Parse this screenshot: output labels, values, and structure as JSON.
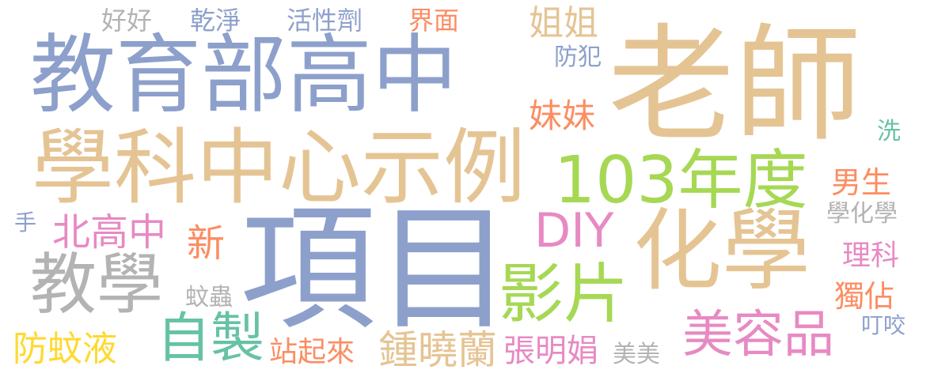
{
  "words": {
    "jiaoyubu": {
      "text": "教育部高中",
      "color": "#8da0cb"
    },
    "laoshi": {
      "text": "老師",
      "color": "#e5c494"
    },
    "xueke": {
      "text": "學科中心示例",
      "color": "#e5c494"
    },
    "xiangmu": {
      "text": "項目",
      "color": "#8da0cb"
    },
    "niandu": {
      "text": "103年度",
      "color": "#a6d854"
    },
    "huaxue": {
      "text": "化學",
      "color": "#e5c494"
    },
    "diy": {
      "text": "DIY",
      "color": "#e78ac3"
    },
    "yingpian": {
      "text": "影片",
      "color": "#a6d854"
    },
    "jiaoxue": {
      "text": "教學",
      "color": "#b3b3b3"
    },
    "zizhi": {
      "text": "自製",
      "color": "#66c2a5"
    },
    "meirong": {
      "text": "美容品",
      "color": "#e78ac3"
    },
    "fangwenye": {
      "text": "防蚊液",
      "color": "#ffd92f"
    },
    "beigao": {
      "text": "北高中",
      "color": "#e78ac3"
    },
    "zhongxiao": {
      "text": "鍾曉蘭",
      "color": "#e5c494"
    },
    "zhangming": {
      "text": "張明娟",
      "color": "#e78ac3"
    },
    "zhanqilai": {
      "text": "站起來",
      "color": "#fc8d62"
    },
    "jiejie": {
      "text": "姐姐",
      "color": "#e5c494"
    },
    "meimei": {
      "text": "妹妹",
      "color": "#fc8d62"
    },
    "nansheng": {
      "text": "男生",
      "color": "#fc8d62"
    },
    "xin": {
      "text": "新",
      "color": "#fc8d62"
    },
    "haohao": {
      "text": "好好",
      "color": "#b3b3b3"
    },
    "ganjing": {
      "text": "乾淨",
      "color": "#8da0cb"
    },
    "huoxing": {
      "text": "活性劑",
      "color": "#8da0cb"
    },
    "jiemian": {
      "text": "界面",
      "color": "#fc8d62"
    },
    "fangfan": {
      "text": "防犯",
      "color": "#8da0cb"
    },
    "xi": {
      "text": "洗",
      "color": "#66c2a5"
    },
    "xuehuaxue": {
      "text": "學化學",
      "color": "#b3b3b3"
    },
    "like": {
      "text": "理科",
      "color": "#e78ac3"
    },
    "dugu": {
      "text": "獨佔",
      "color": "#fc8d62"
    },
    "dingyao": {
      "text": "叮咬",
      "color": "#8da0cb"
    },
    "meimei2": {
      "text": "美美",
      "color": "#b3b3b3"
    },
    "wenchong": {
      "text": "蚊蟲",
      "color": "#b3b3b3"
    },
    "shou": {
      "text": "手",
      "color": "#8da0cb"
    }
  }
}
